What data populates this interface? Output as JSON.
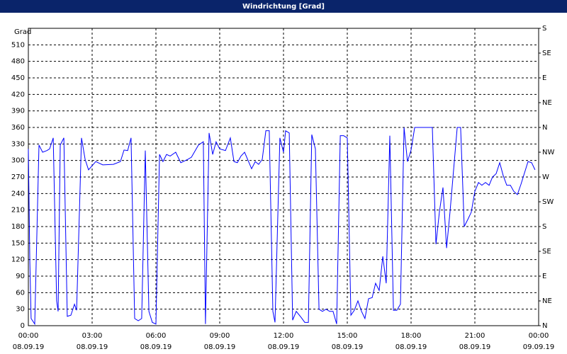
{
  "chart_data": {
    "type": "line",
    "title": "Windrichtung [Grad]",
    "y_label": "Grad",
    "color": "#0000ff",
    "grid": true,
    "xlim": [
      0,
      24
    ],
    "xticks": [
      {
        "value": 0,
        "label": [
          "00:00",
          "08.09.19"
        ]
      },
      {
        "value": 3,
        "label": [
          "03:00",
          "08.09.19"
        ]
      },
      {
        "value": 6,
        "label": [
          "06:00",
          "08.09.19"
        ]
      },
      {
        "value": 9,
        "label": [
          "09:00",
          "08.09.19"
        ]
      },
      {
        "value": 12,
        "label": [
          "12:00",
          "08.09.19"
        ]
      },
      {
        "value": 15,
        "label": [
          "15:00",
          "08.09.19"
        ]
      },
      {
        "value": 18,
        "label": [
          "18:00",
          "08.09.19"
        ]
      },
      {
        "value": 21,
        "label": [
          "21:00",
          "08.09.19"
        ]
      },
      {
        "value": 24,
        "label": [
          "00:00",
          "09.09.19"
        ]
      }
    ],
    "ylim": [
      0,
      540
    ],
    "yticks": [
      0,
      30,
      60,
      90,
      120,
      150,
      180,
      210,
      240,
      270,
      300,
      330,
      360,
      390,
      420,
      450,
      480,
      510
    ],
    "y2lim": [
      0,
      540
    ],
    "y2ticks": [
      {
        "value": 0,
        "label": "N"
      },
      {
        "value": 45,
        "label": "NE"
      },
      {
        "value": 90,
        "label": "E"
      },
      {
        "value": 135,
        "label": "SE"
      },
      {
        "value": 180,
        "label": "S"
      },
      {
        "value": 225,
        "label": "SW"
      },
      {
        "value": 270,
        "label": "W"
      },
      {
        "value": 315,
        "label": "NW"
      },
      {
        "value": 360,
        "label": "N"
      },
      {
        "value": 405,
        "label": "NE"
      },
      {
        "value": 450,
        "label": "E"
      },
      {
        "value": 495,
        "label": "SE"
      },
      {
        "value": 540,
        "label": "S"
      }
    ],
    "x": [
      0,
      0.07,
      0.13,
      0.3,
      0.5,
      0.67,
      0.87,
      1.0,
      1.17,
      1.33,
      1.4,
      1.5,
      1.67,
      1.83,
      2,
      2.17,
      2.27,
      2.5,
      2.67,
      2.83,
      3.17,
      3.5,
      4,
      4.33,
      4.5,
      4.67,
      4.83,
      5,
      5.17,
      5.33,
      5.5,
      5.67,
      5.83,
      6,
      6.17,
      6.33,
      6.5,
      6.67,
      6.93,
      7.17,
      7.5,
      7.67,
      8,
      8.23,
      8.33,
      8.5,
      8.67,
      8.83,
      9,
      9.27,
      9.5,
      9.67,
      9.83,
      10,
      10.17,
      10.5,
      10.67,
      10.83,
      11,
      11.17,
      11.33,
      11.5,
      11.6,
      11.83,
      12,
      12.1,
      12.27,
      12.43,
      12.6,
      12.83,
      13,
      13.17,
      13.33,
      13.5,
      13.67,
      13.83,
      14,
      14.17,
      14.33,
      14.5,
      14.67,
      14.83,
      15,
      15.17,
      15.33,
      15.5,
      15.67,
      15.83,
      16,
      16.17,
      16.33,
      16.5,
      16.67,
      16.83,
      17,
      17.17,
      17.33,
      17.5,
      17.67,
      17.83,
      18,
      18.17,
      18.67,
      19,
      19.17,
      19.33,
      19.5,
      19.67,
      19.83,
      20,
      20.17,
      20.33,
      20.5,
      20.67,
      20.83,
      21,
      21.17,
      21.33,
      21.5,
      21.67,
      21.83,
      22,
      22.17,
      22.33,
      22.5,
      22.67,
      22.83,
      23,
      23.17,
      23.5,
      23.67,
      23.83
    ],
    "values": [
      321,
      116,
      13,
      3,
      328,
      315,
      318,
      321,
      341,
      45,
      26,
      328,
      341,
      17,
      19,
      39,
      28,
      341,
      302,
      283,
      298,
      292,
      293,
      298,
      319,
      318,
      341,
      13,
      9,
      13,
      318,
      26,
      6,
      3,
      311,
      298,
      311,
      308,
      315,
      296,
      302,
      306,
      328,
      334,
      3,
      350,
      311,
      334,
      321,
      318,
      341,
      298,
      296,
      308,
      315,
      285,
      298,
      293,
      302,
      354,
      354,
      26,
      6,
      341,
      315,
      354,
      350,
      10,
      26,
      15,
      6,
      6,
      347,
      321,
      30,
      26,
      30,
      26,
      26,
      3,
      345,
      345,
      341,
      19,
      28,
      45,
      26,
      13,
      49,
      51,
      77,
      64,
      126,
      77,
      345,
      28,
      28,
      39,
      360,
      298,
      319,
      360,
      360,
      360,
      148,
      206,
      251,
      141,
      206,
      283,
      360,
      360,
      180,
      193,
      206,
      244,
      260,
      255,
      260,
      255,
      270,
      276,
      296,
      273,
      255,
      255,
      244,
      238,
      257,
      298,
      296,
      283
    ]
  }
}
